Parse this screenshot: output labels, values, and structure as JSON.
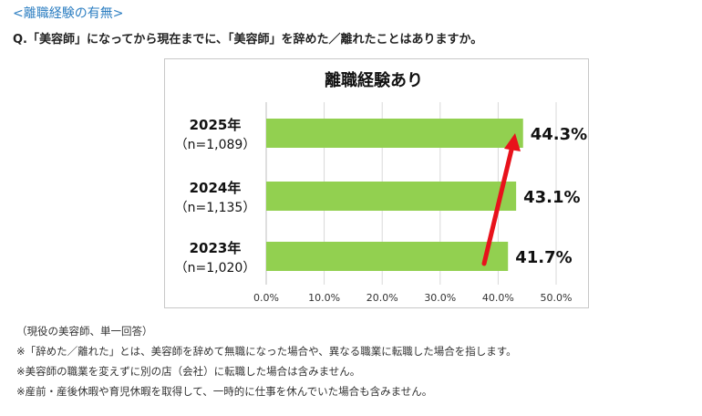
{
  "section_tag": "<離職経験の有無>",
  "question": "Q.「美容師」になってから現在までに、「美容師」を辞めた／離れたことはありますか。",
  "notes": [
    "（現役の美容師、単一回答）",
    "※「辞めた／離れた」とは、美容師を辞めて無職になった場合や、異なる職業に転職した場合を指します。",
    "※美容師の職業を変えずに別の店（会社）に転職した場合は含みません。",
    "※産前・産後休暇や育児休暇を取得して、一時的に仕事を休んでいた場合も含みません。"
  ],
  "colors": {
    "bar": "#92d050",
    "arrow": "#e8121b",
    "tag": "#2e7fc2",
    "grid": "#d9d9d9"
  },
  "chart_data": {
    "type": "bar",
    "orientation": "horizontal",
    "title": "離職経験あり",
    "categories": [
      {
        "year": "2025年",
        "n": "（n=1,089）"
      },
      {
        "year": "2024年",
        "n": "（n=1,135）"
      },
      {
        "year": "2023年",
        "n": "（n=1,020）"
      }
    ],
    "values": [
      44.3,
      43.1,
      41.7
    ],
    "value_labels": [
      "44.3%",
      "43.1%",
      "41.7%"
    ],
    "xlim": [
      0,
      50
    ],
    "xticks": [
      "0.0%",
      "10.0%",
      "20.0%",
      "30.0%",
      "40.0%",
      "50.0%"
    ],
    "grid": true,
    "annotation": "red upward arrow from 2023 bar to 2025 bar"
  }
}
